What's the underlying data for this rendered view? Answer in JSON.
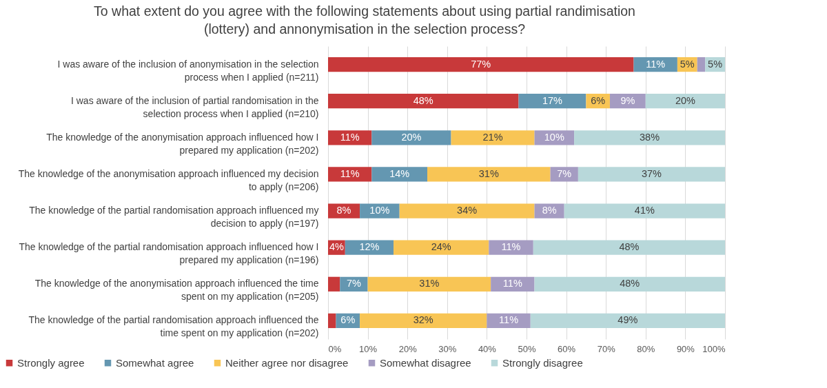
{
  "chart_data": {
    "type": "bar",
    "orientation": "horizontal",
    "stacked": true,
    "title": "To what extent do you agree with the following statements about using partial randimisation (lottery) and annonymisation in the selection process?",
    "categories": [
      "I was aware of the inclusion of anonymisation in the selection process when I applied (n=211)",
      "I was aware of the inclusion of partial randomisation in the selection process when I applied (n=210)",
      "The knowledge of the anonymisation approach influenced how I prepared my application (n=202)",
      "The knowledge of the anonymisation approach influenced my decision to apply (n=206)",
      "The knowledge of the partial randomisation approach influenced my decision to apply (n=197)",
      "The knowledge of the partial randomisation approach influenced how I prepared my application (n=196)",
      "The knowledge of the anonymisation approach influenced the time spent on my application (n=205)",
      "The knowledge of the partial randomisation approach influenced the time spent on my application (n=202)"
    ],
    "series": [
      {
        "name": "Strongly agree",
        "color": "#c8393a",
        "values": [
          77,
          48,
          11,
          11,
          8,
          4.3,
          3,
          2
        ],
        "value_labels": [
          "77%",
          "48%",
          "11%",
          "11%",
          "8%",
          "4%",
          null,
          null
        ]
      },
      {
        "name": "Somewhat agree",
        "color": "#6497b1",
        "values": [
          11,
          17,
          20,
          14,
          10,
          12.2,
          7,
          6
        ],
        "value_labels": [
          "11%",
          "17%",
          "20%",
          "14%",
          "10%",
          "12%",
          "7%",
          "6%"
        ]
      },
      {
        "name": "Neither agree nor disagree",
        "color": "#f8c555",
        "values": [
          5,
          6,
          21,
          31,
          34,
          24,
          31,
          32
        ],
        "value_labels": [
          "5%",
          "6%",
          "21%",
          "31%",
          "34%",
          "24%",
          "31%",
          "32%"
        ]
      },
      {
        "name": "Somewhat disagree",
        "color": "#a59cc2",
        "values": [
          2,
          9,
          10,
          7,
          7.5,
          11.2,
          11,
          11
        ],
        "value_labels": [
          null,
          "9%",
          "10%",
          "7%",
          "8%",
          "11%",
          "11%",
          "11%"
        ]
      },
      {
        "name": "Strongly disagree",
        "color": "#b8d8da",
        "values": [
          5,
          20,
          38,
          37,
          40.5,
          48.3,
          48,
          49
        ],
        "value_labels": [
          "5%",
          "20%",
          "38%",
          "37%",
          "41%",
          "48%",
          "48%",
          "49%"
        ]
      }
    ],
    "xlim": [
      0,
      100
    ],
    "xticks": [
      {
        "value": 0,
        "label": "0%"
      },
      {
        "value": 10,
        "label": "10%"
      },
      {
        "value": 20,
        "label": "20%"
      },
      {
        "value": 30,
        "label": "30%"
      },
      {
        "value": 40,
        "label": "40%"
      },
      {
        "value": 50,
        "label": "50%"
      },
      {
        "value": 60,
        "label": "60%"
      },
      {
        "value": 70,
        "label": "70%"
      },
      {
        "value": 80,
        "label": "80%"
      },
      {
        "value": 90,
        "label": "90%"
      },
      {
        "value": 100,
        "label": "100%"
      }
    ],
    "grid": "x",
    "legend": "bottom"
  }
}
